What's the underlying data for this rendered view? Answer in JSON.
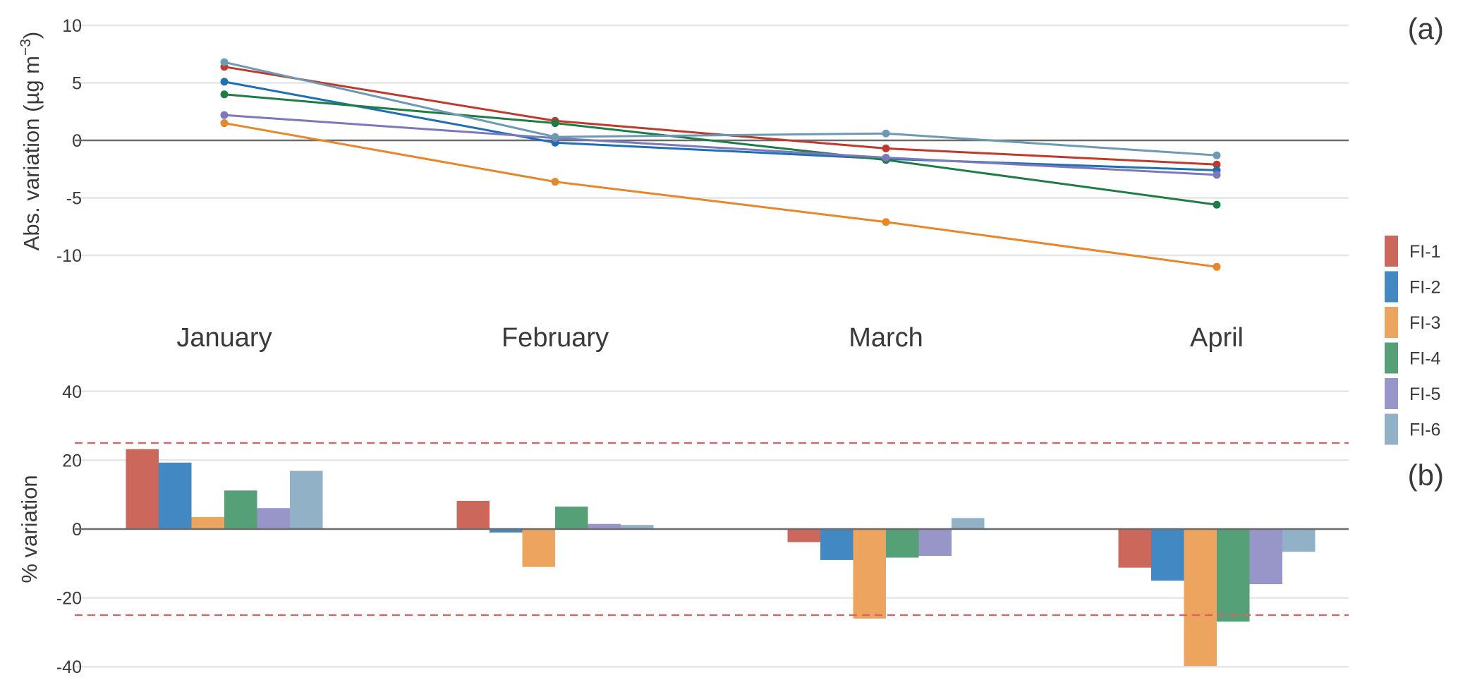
{
  "chart_data": [
    {
      "panel_label": "(a)",
      "type": "line",
      "ylabel": "Abs. variation (µg m",
      "ylabel_exp": "−3",
      "ylabel_close": ")",
      "ylim": [
        -13.5,
        10
      ],
      "yticks": [
        10,
        5,
        0,
        -5,
        -10
      ],
      "ytick_labels": [
        "10",
        "5",
        "0",
        "-5",
        "-10"
      ],
      "grid": true,
      "categories": [
        "January",
        "February",
        "March",
        "April"
      ],
      "series": [
        {
          "name": "FI-1",
          "color": "#c0392b",
          "values": [
            6.4,
            1.7,
            -0.7,
            -2.1
          ]
        },
        {
          "name": "FI-2",
          "color": "#1f6fb4",
          "values": [
            5.1,
            -0.2,
            -1.6,
            -2.6
          ]
        },
        {
          "name": "FI-3",
          "color": "#e8862a",
          "values": [
            1.5,
            -3.6,
            -7.1,
            -11.0
          ]
        },
        {
          "name": "FI-4",
          "color": "#1e7d45",
          "values": [
            4.0,
            1.5,
            -1.7,
            -5.6
          ]
        },
        {
          "name": "FI-5",
          "color": "#7b78bb",
          "values": [
            2.2,
            0.2,
            -1.5,
            -3.0
          ]
        },
        {
          "name": "FI-6",
          "color": "#6c99b3",
          "values": [
            6.8,
            0.3,
            0.6,
            -1.3
          ]
        }
      ]
    },
    {
      "panel_label": "(b)",
      "type": "bar",
      "ylabel": "% variation",
      "ylim": [
        -40,
        40
      ],
      "yticks": [
        40,
        20,
        0,
        -20,
        -40
      ],
      "ytick_labels": [
        "40",
        "20",
        "0",
        "-20",
        "-40"
      ],
      "grid": true,
      "reference_lines": [
        25,
        -25
      ],
      "categories": [
        "January",
        "February",
        "March",
        "April"
      ],
      "series": [
        {
          "name": "FI-1",
          "color": "#cc675c",
          "values": [
            23.2,
            8.2,
            -3.8,
            -11.2
          ]
        },
        {
          "name": "FI-2",
          "color": "#4289c4",
          "values": [
            19.3,
            -1.0,
            -9.0,
            -15.0
          ]
        },
        {
          "name": "FI-3",
          "color": "#eca45e",
          "values": [
            3.5,
            -11.0,
            -26.0,
            -39.8
          ]
        },
        {
          "name": "FI-4",
          "color": "#55a077",
          "values": [
            11.2,
            6.5,
            -8.3,
            -26.9
          ]
        },
        {
          "name": "FI-5",
          "color": "#9895c8",
          "values": [
            6.1,
            1.5,
            -7.8,
            -16.0
          ]
        },
        {
          "name": "FI-6",
          "color": "#91b2c6",
          "values": [
            16.9,
            1.2,
            3.2,
            -6.6
          ]
        }
      ]
    }
  ],
  "legend": {
    "placement": "right",
    "items": [
      {
        "label": "FI-1",
        "color": "#cc675c"
      },
      {
        "label": "FI-2",
        "color": "#4289c4"
      },
      {
        "label": "FI-3",
        "color": "#eca45e"
      },
      {
        "label": "FI-4",
        "color": "#55a077"
      },
      {
        "label": "FI-5",
        "color": "#9895c8"
      },
      {
        "label": "FI-6",
        "color": "#91b2c6"
      }
    ]
  }
}
